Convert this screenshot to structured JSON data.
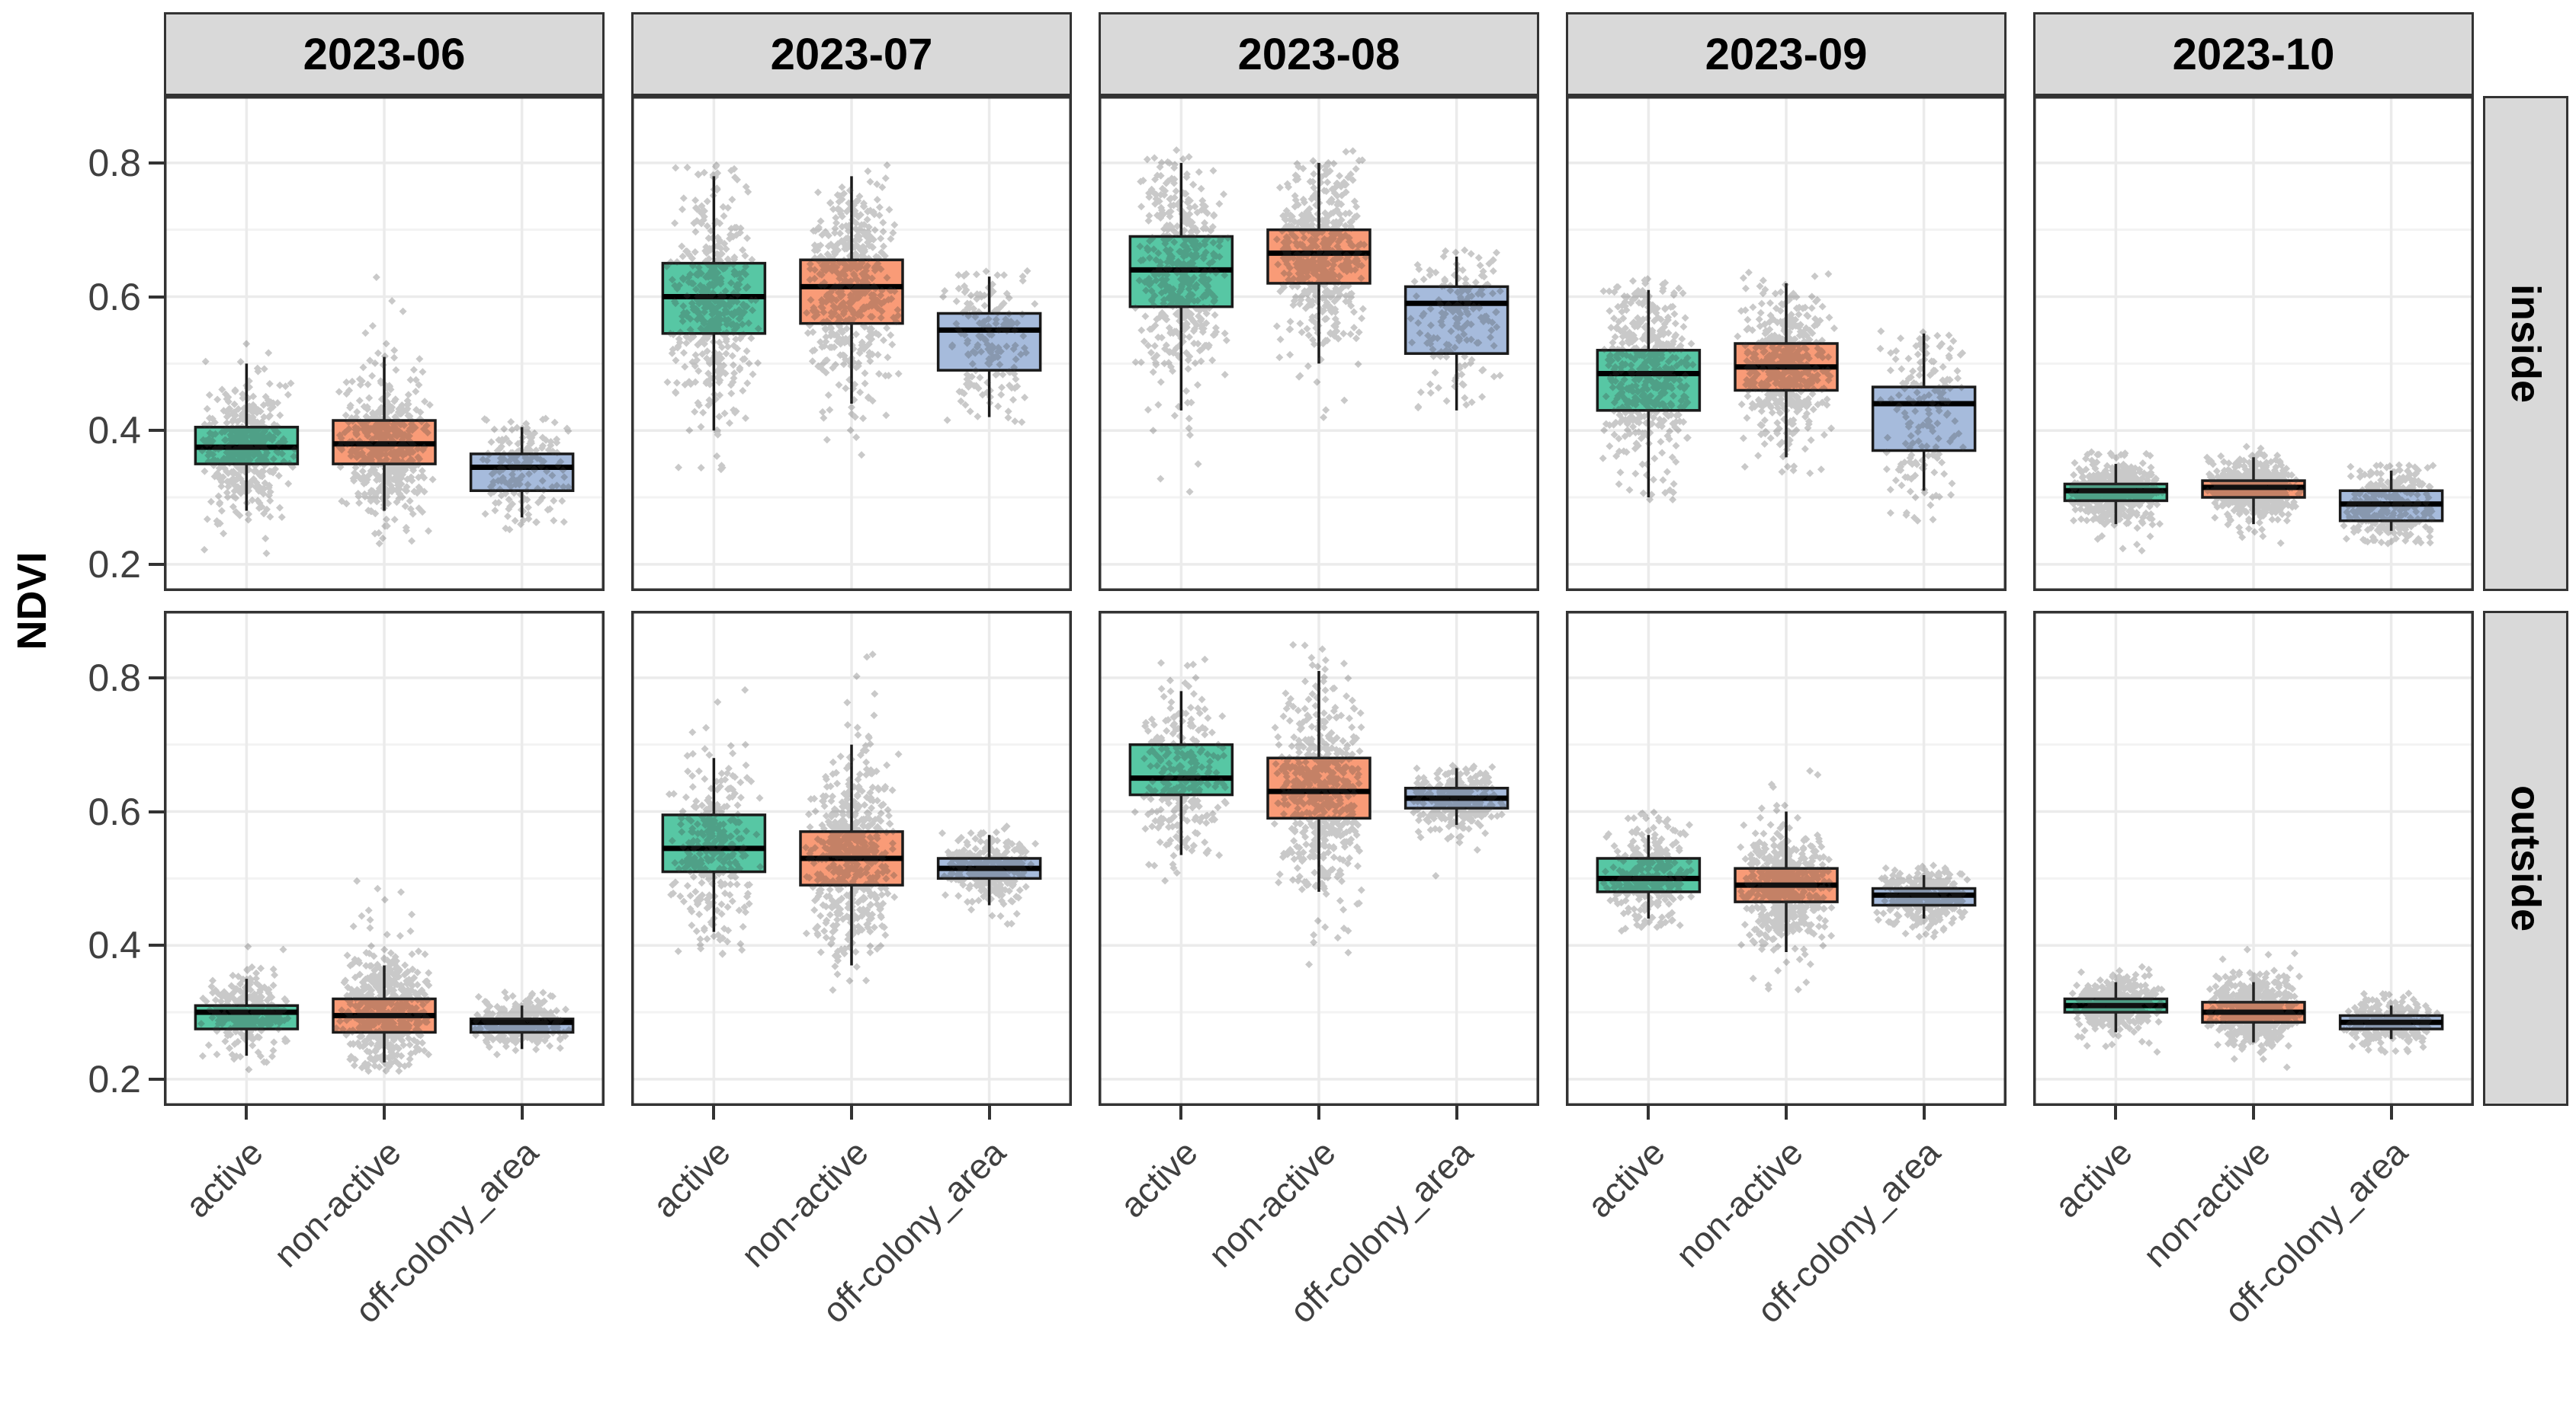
{
  "chart_data": {
    "type": "boxplot",
    "title": "",
    "ylabel": "NDVI",
    "facet_columns": [
      "2023-06",
      "2023-07",
      "2023-08",
      "2023-09",
      "2023-10"
    ],
    "facet_rows": [
      "inside",
      "outside"
    ],
    "categories": [
      "active",
      "non-active",
      "off-colony_area"
    ],
    "y_axis": {
      "tick_labels": [
        "0.8",
        "0.6",
        "0.4",
        "0.2"
      ],
      "tick_values": [
        0.8,
        0.6,
        0.4,
        0.2
      ],
      "minor_values": [
        0.3,
        0.5,
        0.7
      ],
      "range": [
        0.16,
        0.9
      ],
      "grid": true
    },
    "colors": {
      "active": "#57C7A4",
      "non-active": "#F99B77",
      "off-colony_area": "#A6BBDC",
      "box_border": "#1a1a1a",
      "median": "#000000",
      "point": "#3d3d3d",
      "grid_major": "#ebebeb",
      "grid_minor": "#f3f3f3",
      "panel_border": "#333333",
      "strip_bg": "#d9d9d9",
      "axis_text": "#404040",
      "strip_text": "#000000"
    },
    "boxes": {
      "inside": {
        "2023-06": {
          "active": {
            "lo": 0.28,
            "q1": 0.35,
            "med": 0.375,
            "q3": 0.405,
            "hi": 0.5,
            "pts": [
              0.21,
              0.57
            ],
            "n": 420
          },
          "non-active": {
            "lo": 0.28,
            "q1": 0.35,
            "med": 0.38,
            "q3": 0.415,
            "hi": 0.51,
            "pts": [
              0.23,
              0.63
            ],
            "n": 480
          },
          "off-colony_area": {
            "lo": 0.27,
            "q1": 0.31,
            "med": 0.345,
            "q3": 0.365,
            "hi": 0.405,
            "pts": [
              0.25,
              0.42
            ],
            "n": 180
          }
        },
        "2023-07": {
          "active": {
            "lo": 0.4,
            "q1": 0.545,
            "med": 0.6,
            "q3": 0.65,
            "hi": 0.78,
            "pts": [
              0.33,
              0.8
            ],
            "n": 450
          },
          "non-active": {
            "lo": 0.44,
            "q1": 0.56,
            "med": 0.615,
            "q3": 0.655,
            "hi": 0.78,
            "pts": [
              0.36,
              0.8
            ],
            "n": 480
          },
          "off-colony_area": {
            "lo": 0.42,
            "q1": 0.49,
            "med": 0.55,
            "q3": 0.575,
            "hi": 0.63,
            "pts": [
              0.41,
              0.64
            ],
            "n": 170
          }
        },
        "2023-08": {
          "active": {
            "lo": 0.43,
            "q1": 0.585,
            "med": 0.64,
            "q3": 0.69,
            "hi": 0.8,
            "pts": [
              0.3,
              0.82
            ],
            "n": 450
          },
          "non-active": {
            "lo": 0.5,
            "q1": 0.62,
            "med": 0.665,
            "q3": 0.7,
            "hi": 0.8,
            "pts": [
              0.35,
              0.83
            ],
            "n": 500
          },
          "off-colony_area": {
            "lo": 0.43,
            "q1": 0.515,
            "med": 0.59,
            "q3": 0.615,
            "hi": 0.66,
            "pts": [
              0.42,
              0.67
            ],
            "n": 170
          }
        },
        "2023-09": {
          "active": {
            "lo": 0.3,
            "q1": 0.43,
            "med": 0.485,
            "q3": 0.52,
            "hi": 0.61,
            "pts": [
              0.28,
              0.63
            ],
            "n": 480
          },
          "non-active": {
            "lo": 0.36,
            "q1": 0.46,
            "med": 0.495,
            "q3": 0.53,
            "hi": 0.62,
            "pts": [
              0.33,
              0.64
            ],
            "n": 480
          },
          "off-colony_area": {
            "lo": 0.31,
            "q1": 0.37,
            "med": 0.44,
            "q3": 0.465,
            "hi": 0.545,
            "pts": [
              0.26,
              0.55
            ],
            "n": 170
          }
        },
        "2023-10": {
          "active": {
            "lo": 0.26,
            "q1": 0.295,
            "med": 0.31,
            "q3": 0.32,
            "hi": 0.35,
            "pts": [
              0.22,
              0.37
            ],
            "n": 550
          },
          "non-active": {
            "lo": 0.26,
            "q1": 0.3,
            "med": 0.315,
            "q3": 0.325,
            "hi": 0.36,
            "pts": [
              0.22,
              0.38
            ],
            "n": 550
          },
          "off-colony_area": {
            "lo": 0.25,
            "q1": 0.265,
            "med": 0.29,
            "q3": 0.31,
            "hi": 0.34,
            "pts": [
              0.23,
              0.35
            ],
            "n": 300
          }
        }
      },
      "outside": {
        "2023-06": {
          "active": {
            "lo": 0.235,
            "q1": 0.275,
            "med": 0.3,
            "q3": 0.31,
            "hi": 0.35,
            "pts": [
              0.21,
              0.4
            ],
            "n": 280
          },
          "non-active": {
            "lo": 0.225,
            "q1": 0.27,
            "med": 0.295,
            "q3": 0.32,
            "hi": 0.37,
            "pts": [
              0.21,
              0.5
            ],
            "n": 550
          },
          "off-colony_area": {
            "lo": 0.245,
            "q1": 0.27,
            "med": 0.285,
            "q3": 0.29,
            "hi": 0.31,
            "pts": [
              0.23,
              0.33
            ],
            "n": 300
          }
        },
        "2023-07": {
          "active": {
            "lo": 0.42,
            "q1": 0.51,
            "med": 0.545,
            "q3": 0.595,
            "hi": 0.68,
            "pts": [
              0.38,
              0.8
            ],
            "n": 300
          },
          "non-active": {
            "lo": 0.37,
            "q1": 0.49,
            "med": 0.53,
            "q3": 0.57,
            "hi": 0.7,
            "pts": [
              0.3,
              0.84
            ],
            "n": 550
          },
          "off-colony_area": {
            "lo": 0.46,
            "q1": 0.5,
            "med": 0.515,
            "q3": 0.53,
            "hi": 0.565,
            "pts": [
              0.43,
              0.58
            ],
            "n": 280
          }
        },
        "2023-08": {
          "active": {
            "lo": 0.535,
            "q1": 0.625,
            "med": 0.65,
            "q3": 0.7,
            "hi": 0.78,
            "pts": [
              0.49,
              0.84
            ],
            "n": 280
          },
          "non-active": {
            "lo": 0.48,
            "q1": 0.59,
            "med": 0.63,
            "q3": 0.68,
            "hi": 0.81,
            "pts": [
              0.31,
              0.85
            ],
            "n": 550
          },
          "off-colony_area": {
            "lo": 0.58,
            "q1": 0.605,
            "med": 0.62,
            "q3": 0.635,
            "hi": 0.665,
            "pts": [
              0.5,
              0.67
            ],
            "n": 280
          }
        },
        "2023-09": {
          "active": {
            "lo": 0.44,
            "q1": 0.48,
            "med": 0.5,
            "q3": 0.53,
            "hi": 0.565,
            "pts": [
              0.42,
              0.6
            ],
            "n": 280
          },
          "non-active": {
            "lo": 0.39,
            "q1": 0.465,
            "med": 0.49,
            "q3": 0.515,
            "hi": 0.6,
            "pts": [
              0.26,
              0.67
            ],
            "n": 550
          },
          "off-colony_area": {
            "lo": 0.44,
            "q1": 0.46,
            "med": 0.475,
            "q3": 0.485,
            "hi": 0.505,
            "pts": [
              0.41,
              0.52
            ],
            "n": 300
          }
        },
        "2023-10": {
          "active": {
            "lo": 0.27,
            "q1": 0.3,
            "med": 0.31,
            "q3": 0.32,
            "hi": 0.345,
            "pts": [
              0.22,
              0.38
            ],
            "n": 420
          },
          "non-active": {
            "lo": 0.255,
            "q1": 0.285,
            "med": 0.3,
            "q3": 0.315,
            "hi": 0.345,
            "pts": [
              0.21,
              0.4
            ],
            "n": 550
          },
          "off-colony_area": {
            "lo": 0.26,
            "q1": 0.275,
            "med": 0.285,
            "q3": 0.295,
            "hi": 0.31,
            "pts": [
              0.24,
              0.33
            ],
            "n": 300
          }
        }
      }
    }
  }
}
